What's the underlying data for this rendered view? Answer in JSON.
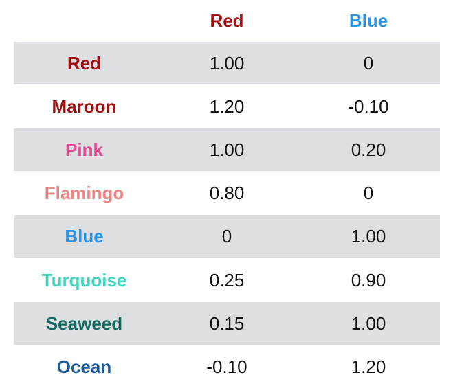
{
  "columns": [
    {
      "label": "Red",
      "color": "#a01010"
    },
    {
      "label": "Blue",
      "color": "#2a93e6"
    }
  ],
  "rows": [
    {
      "name": "Red",
      "color": "#a01010",
      "red": "1.00",
      "blue": "0"
    },
    {
      "name": "Maroon",
      "color": "#a01010",
      "red": "1.20",
      "blue": "-0.10"
    },
    {
      "name": "Pink",
      "color": "#e4468f",
      "red": "1.00",
      "blue": "0.20"
    },
    {
      "name": "Flamingo",
      "color": "#f08484",
      "red": "0.80",
      "blue": "0"
    },
    {
      "name": "Blue",
      "color": "#2a93e6",
      "red": "0",
      "blue": "1.00"
    },
    {
      "name": "Turquoise",
      "color": "#3fd6c0",
      "red": "0.25",
      "blue": "0.90"
    },
    {
      "name": "Seaweed",
      "color": "#13695f",
      "red": "0.15",
      "blue": "1.00"
    },
    {
      "name": "Ocean",
      "color": "#1a5c9a",
      "red": "-0.10",
      "blue": "1.20"
    }
  ]
}
